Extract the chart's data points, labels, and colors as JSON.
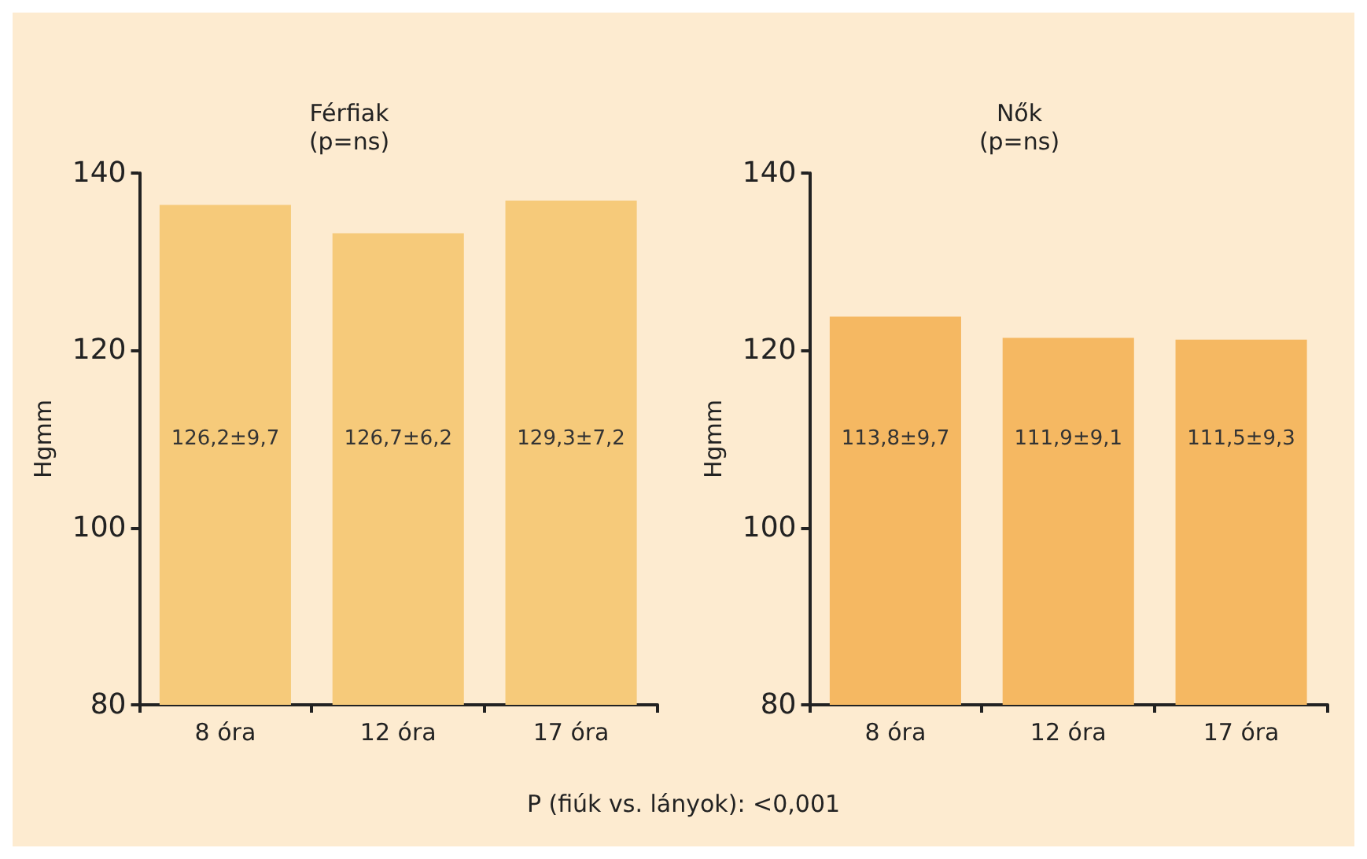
{
  "chart_data": [
    {
      "type": "bar",
      "title": "Férfiak\n(p=ns)",
      "ylabel": "Hgmm",
      "categories": [
        "8 óra",
        "12 óra",
        "17 óra"
      ],
      "values": [
        136.4,
        133.2,
        136.9
      ],
      "color": "#f6ca7a",
      "ylim": [
        80,
        140
      ],
      "yticks": [
        80,
        100,
        120,
        140
      ],
      "grid": false,
      "annotations": [
        "126,2±9,7",
        "126,7±6,2",
        "129,3±7,2"
      ]
    },
    {
      "type": "bar",
      "title": "Nők\n(p=ns)",
      "ylabel": "Hgmm",
      "categories": [
        "8 óra",
        "12 óra",
        "17 óra"
      ],
      "values": [
        123.8,
        121.4,
        121.2
      ],
      "color": "#f5b862",
      "ylim": [
        80,
        140
      ],
      "yticks": [
        80,
        100,
        120,
        140
      ],
      "grid": false,
      "annotations": [
        "113,8±9,7",
        "111,9±9,1",
        "111,5±9,3",
        "P (fiúk vs. lányok): <0,001"
      ]
    }
  ]
}
